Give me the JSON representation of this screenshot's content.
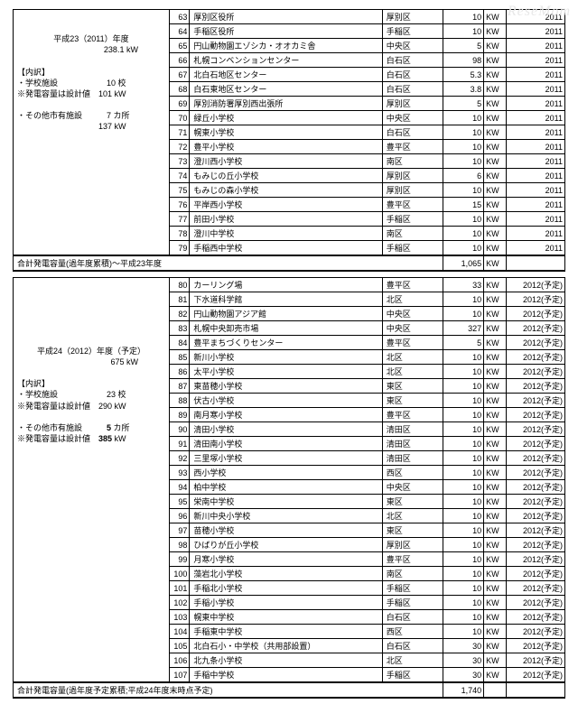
{
  "watermark": "ReseMom",
  "unit_label": "KW",
  "sections": [
    {
      "left_html": "<br><br><div style='text-align:center'>平成23（2011）年度</div><div style='text-align:right;padding-right:30px'>238.1 kW</div><br>【内訳】<br>・学校施設　　　　　　10 校<br>※発電容量は設計値　101 kW<br><br>・その他市有施設　　　7 カ所<br>　　　　　　　　　　137 kW",
      "rows": [
        {
          "n": 63,
          "name": "厚別区役所",
          "ward": "厚別区",
          "kw": "10",
          "year": "2011"
        },
        {
          "n": 64,
          "name": "手稲区役所",
          "ward": "手稲区",
          "kw": "10",
          "year": "2011"
        },
        {
          "n": 65,
          "name": "円山動物園エゾシカ・オオカミ舎",
          "ward": "中央区",
          "kw": "5",
          "year": "2011"
        },
        {
          "n": 66,
          "name": "札幌コンベンションセンター",
          "ward": "白石区",
          "kw": "98",
          "year": "2011"
        },
        {
          "n": 67,
          "name": "北白石地区センター",
          "ward": "白石区",
          "kw": "5.3",
          "year": "2011"
        },
        {
          "n": 68,
          "name": "白石東地区センター",
          "ward": "白石区",
          "kw": "3.8",
          "year": "2011"
        },
        {
          "n": 69,
          "name": "厚別消防署厚別西出張所",
          "ward": "厚別区",
          "kw": "5",
          "year": "2011"
        },
        {
          "n": 70,
          "name": "緑丘小学校",
          "ward": "中央区",
          "kw": "10",
          "year": "2011"
        },
        {
          "n": 71,
          "name": "幌東小学校",
          "ward": "白石区",
          "kw": "10",
          "year": "2011"
        },
        {
          "n": 72,
          "name": "豊平小学校",
          "ward": "豊平区",
          "kw": "10",
          "year": "2011"
        },
        {
          "n": 73,
          "name": "澄川西小学校",
          "ward": "南区",
          "kw": "10",
          "year": "2011"
        },
        {
          "n": 74,
          "name": "もみじの丘小学校",
          "ward": "厚別区",
          "kw": "6",
          "year": "2011"
        },
        {
          "n": 75,
          "name": "もみじの森小学校",
          "ward": "厚別区",
          "kw": "10",
          "year": "2011"
        },
        {
          "n": 76,
          "name": "平岸西小学校",
          "ward": "豊平区",
          "kw": "15",
          "year": "2011"
        },
        {
          "n": 77,
          "name": "前田小学校",
          "ward": "手稲区",
          "kw": "10",
          "year": "2011"
        },
        {
          "n": 78,
          "name": "澄川中学校",
          "ward": "南区",
          "kw": "10",
          "year": "2011"
        },
        {
          "n": 79,
          "name": "手稲西中学校",
          "ward": "手稲区",
          "kw": "10",
          "year": "2011"
        }
      ]
    },
    {
      "left_html": "<br><br><br><br><br><br><div style='text-align:center'>平成24（2012）年度（予定）</div><div style='text-align:right;padding-right:30px'>675 kW</div><br>【内訳】<br>・学校施設　　　　　　23 校<br>※発電容量は設計値　290 kW<br><br>・その他市有施設　　　<b>5</b> カ所<br>※発電容量は設計値　<b>385</b> kW",
      "rows": [
        {
          "n": 80,
          "name": "カーリング場",
          "ward": "豊平区",
          "kw": "33",
          "year": "2012(予定)"
        },
        {
          "n": 81,
          "name": "下水道科学館",
          "ward": "北区",
          "kw": "10",
          "year": "2012(予定)"
        },
        {
          "n": 82,
          "name": "円山動物園アジア館",
          "ward": "中央区",
          "kw": "10",
          "year": "2012(予定)"
        },
        {
          "n": 83,
          "name": "札幌中央卸売市場",
          "ward": "中央区",
          "kw": "327",
          "year": "2012(予定)"
        },
        {
          "n": 84,
          "name": "豊平まちづくりセンター",
          "ward": "豊平区",
          "kw": "5",
          "year": "2012(予定)"
        },
        {
          "n": 85,
          "name": "新川小学校",
          "ward": "北区",
          "kw": "10",
          "year": "2012(予定)"
        },
        {
          "n": 86,
          "name": "太平小学校",
          "ward": "北区",
          "kw": "10",
          "year": "2012(予定)"
        },
        {
          "n": 87,
          "name": "東苗穂小学校",
          "ward": "東区",
          "kw": "10",
          "year": "2012(予定)"
        },
        {
          "n": 88,
          "name": "伏古小学校",
          "ward": "東区",
          "kw": "10",
          "year": "2012(予定)"
        },
        {
          "n": 89,
          "name": "南月寒小学校",
          "ward": "豊平区",
          "kw": "10",
          "year": "2012(予定)"
        },
        {
          "n": 90,
          "name": "清田小学校",
          "ward": "清田区",
          "kw": "10",
          "year": "2012(予定)"
        },
        {
          "n": 91,
          "name": "清田南小学校",
          "ward": "清田区",
          "kw": "10",
          "year": "2012(予定)"
        },
        {
          "n": 92,
          "name": "三里塚小学校",
          "ward": "清田区",
          "kw": "10",
          "year": "2012(予定)"
        },
        {
          "n": 93,
          "name": "西小学校",
          "ward": "西区",
          "kw": "10",
          "year": "2012(予定)"
        },
        {
          "n": 94,
          "name": "柏中学校",
          "ward": "中央区",
          "kw": "10",
          "year": "2012(予定)"
        },
        {
          "n": 95,
          "name": "栄南中学校",
          "ward": "東区",
          "kw": "10",
          "year": "2012(予定)"
        },
        {
          "n": 96,
          "name": "新川中央小学校",
          "ward": "北区",
          "kw": "10",
          "year": "2012(予定)"
        },
        {
          "n": 97,
          "name": "苗穂小学校",
          "ward": "東区",
          "kw": "10",
          "year": "2012(予定)"
        },
        {
          "n": 98,
          "name": "ひばりが丘小学校",
          "ward": "厚別区",
          "kw": "10",
          "year": "2012(予定)"
        },
        {
          "n": 99,
          "name": "月寒小学校",
          "ward": "豊平区",
          "kw": "10",
          "year": "2012(予定)"
        },
        {
          "n": 100,
          "name": "藻岩北小学校",
          "ward": "南区",
          "kw": "10",
          "year": "2012(予定)"
        },
        {
          "n": 101,
          "name": "手稲北小学校",
          "ward": "手稲区",
          "kw": "10",
          "year": "2012(予定)"
        },
        {
          "n": 102,
          "name": "手稲小学校",
          "ward": "手稲区",
          "kw": "10",
          "year": "2012(予定)"
        },
        {
          "n": 103,
          "name": "幌東中学校",
          "ward": "白石区",
          "kw": "10",
          "year": "2012(予定)"
        },
        {
          "n": 104,
          "name": "手稲東中学校",
          "ward": "西区",
          "kw": "10",
          "year": "2012(予定)"
        },
        {
          "n": 105,
          "name": "北白石小・中学校（共用部設置）",
          "ward": "白石区",
          "kw": "30",
          "year": "2012(予定)"
        },
        {
          "n": 106,
          "name": "北九条小学校",
          "ward": "北区",
          "kw": "30",
          "year": "2012(予定)"
        },
        {
          "n": 107,
          "name": "手稲中学校",
          "ward": "手稲区",
          "kw": "30",
          "year": "2012(予定)"
        }
      ]
    }
  ],
  "totals": [
    {
      "label": "合計発電容量(過年度累積)～平成23年度",
      "value": "1,065",
      "unit": "KW"
    },
    {
      "label": "合計発電容量(過年度予定累積;平成24年度末時点予定)",
      "value": "1,740"
    }
  ]
}
